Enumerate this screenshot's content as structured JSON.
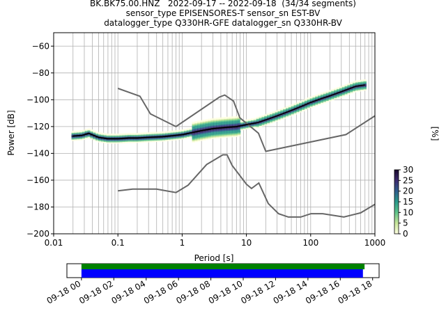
{
  "title_lines": [
    "BK.BK75.00.HNZ   2022-09-17 -- 2022-09-18  (34/34 segments)",
    "sensor_type EPISENSORES-T sensor_sn EST-BV",
    "datalogger_type Q330HR-GFE datalogger_sn Q330HR-BV"
  ],
  "chart_data": [
    {
      "type": "heatmap",
      "title": "BK.BK75.00.HNZ   2022-09-17 -- 2022-09-18  (34/34 segments)",
      "xlabel": "Period [s]",
      "ylabel": "Power [dB]",
      "xscale": "log",
      "xlim": [
        0.01,
        1000
      ],
      "ylim": [
        -200,
        -50
      ],
      "xticks": [
        {
          "value": 0.01,
          "label": "0.01"
        },
        {
          "value": 0.1,
          "label": "0.1"
        },
        {
          "value": 1,
          "label": "1"
        },
        {
          "value": 10,
          "label": "10"
        },
        {
          "value": 100,
          "label": "100"
        },
        {
          "value": 1000,
          "label": "1000"
        }
      ],
      "yticks": [
        {
          "value": -200,
          "label": "−200"
        },
        {
          "value": -180,
          "label": "−180"
        },
        {
          "value": -160,
          "label": "−160"
        },
        {
          "value": -140,
          "label": "−140"
        },
        {
          "value": -120,
          "label": "−120"
        },
        {
          "value": -100,
          "label": "−100"
        },
        {
          "value": -80,
          "label": "−80"
        },
        {
          "value": -60,
          "label": "−60"
        }
      ],
      "grid": true,
      "colorbar": {
        "label": "[%]",
        "min": 0,
        "max": 30,
        "ticks": [
          "0",
          "5",
          "10",
          "15",
          "20",
          "25",
          "30"
        ],
        "colors": [
          "#ffffe0",
          "#c8e69a",
          "#5fc38a",
          "#2a9a8a",
          "#2f5d8c",
          "#3b2a6e",
          "#1a0a2e"
        ]
      },
      "noise_models": {
        "color": "#666666",
        "high": [
          [
            0.1,
            -91.5
          ],
          [
            0.22,
            -97.4
          ],
          [
            0.32,
            -110.5
          ],
          [
            0.8,
            -120
          ],
          [
            3.8,
            -98
          ],
          [
            4.6,
            -96.5
          ],
          [
            6.3,
            -101
          ],
          [
            7.9,
            -113.5
          ],
          [
            15.4,
            -125
          ],
          [
            20,
            -138.5
          ],
          [
            354.8,
            -126
          ],
          [
            1000,
            -112
          ]
        ],
        "low": [
          [
            0.1,
            -168
          ],
          [
            0.17,
            -166.7
          ],
          [
            0.4,
            -166.7
          ],
          [
            0.8,
            -169.2
          ],
          [
            1.24,
            -163.7
          ],
          [
            2.4,
            -148.3
          ],
          [
            4.3,
            -141.1
          ],
          [
            5,
            -141.1
          ],
          [
            6,
            -149
          ],
          [
            10,
            -163
          ],
          [
            12,
            -166.2
          ],
          [
            15.6,
            -162.1
          ],
          [
            21.9,
            -177.5
          ],
          [
            31.6,
            -185
          ],
          [
            45,
            -187.5
          ],
          [
            70,
            -187.5
          ],
          [
            101,
            -185
          ],
          [
            154,
            -185
          ],
          [
            328,
            -187.5
          ],
          [
            600,
            -184.4
          ],
          [
            1000,
            -178
          ]
        ]
      },
      "mode_line": {
        "color": "#000000",
        "points": [
          [
            0.02,
            -127
          ],
          [
            0.028,
            -126.5
          ],
          [
            0.035,
            -125
          ],
          [
            0.05,
            -128
          ],
          [
            0.07,
            -129
          ],
          [
            0.1,
            -129
          ],
          [
            0.15,
            -128.5
          ],
          [
            0.2,
            -128.5
          ],
          [
            0.3,
            -128
          ],
          [
            0.5,
            -127.5
          ],
          [
            0.8,
            -126.5
          ],
          [
            1,
            -126
          ],
          [
            2,
            -123
          ],
          [
            3,
            -121.5
          ],
          [
            5,
            -120.5
          ],
          [
            7,
            -120
          ],
          [
            10,
            -118.5
          ],
          [
            15,
            -117
          ],
          [
            20,
            -115
          ],
          [
            30,
            -112
          ],
          [
            50,
            -108
          ],
          [
            80,
            -104
          ],
          [
            100,
            -102
          ],
          [
            150,
            -99
          ],
          [
            200,
            -97
          ],
          [
            300,
            -94
          ],
          [
            500,
            -90
          ],
          [
            700,
            -89
          ]
        ]
      }
    },
    {
      "type": "bar",
      "title": "",
      "xlabel": "",
      "ylabel": "",
      "xticks": [
        "09-18 00",
        "09-18 02",
        "09-18 04",
        "09-18 06",
        "09-18 08",
        "09-18 10",
        "09-18 12",
        "09-18 14",
        "09-18 16",
        "09-18 18"
      ],
      "xlim_hours": [
        -0.9,
        18.4
      ],
      "series": [
        {
          "color": "#008000",
          "start_hour": 0,
          "end_hour": 17.5
        },
        {
          "color": "#0000ff",
          "start_hour": 0,
          "end_hour": 17.4
        }
      ]
    }
  ]
}
